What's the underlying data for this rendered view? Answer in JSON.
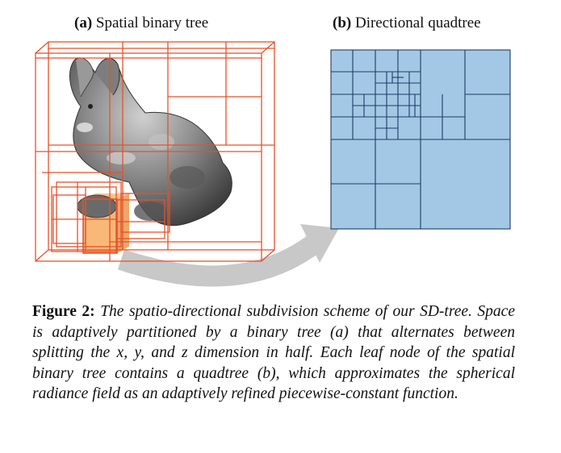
{
  "panels": {
    "a": {
      "letter": "(a)",
      "title": "Spatial binary tree"
    },
    "b": {
      "letter": "(b)",
      "title": "Directional quadtree"
    }
  },
  "caption": {
    "label": "Figure 2:",
    "text": "The spatio-directional subdivision scheme of our SD-tree. Space is adaptively partitioned by a binary tree (a) that alternates between splitting the x, y, and z dimension in half. Each leaf node of the spatial binary tree contains a quadtree (b), which approximates the spherical radiance field as an adaptively refined piecewise-constant function."
  },
  "colors": {
    "tree_line": "#e8502a",
    "leaf_fill": "#f5a04a",
    "quad_fill": "#a3c8e5",
    "quad_line": "#1f3a66",
    "arrow": "#c8c8c8",
    "bunny_dark": "#4a4a4a",
    "bunny_light": "#b8b8b8"
  }
}
